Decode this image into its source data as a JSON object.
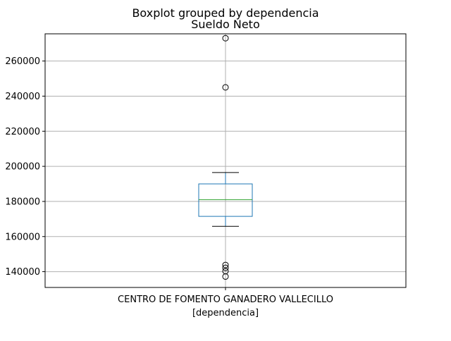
{
  "chart_data": {
    "type": "box",
    "suptitle": "Boxplot grouped by dependencia",
    "title": "Sueldo Neto",
    "xlabel": "[dependencia]",
    "ylabel": "",
    "categories": [
      "CENTRO DE FOMENTO GANADERO VALLECILLO"
    ],
    "ylim": [
      131000,
      275500
    ],
    "yticks": [
      140000,
      160000,
      180000,
      200000,
      220000,
      240000,
      260000
    ],
    "grid": true,
    "boxes": [
      {
        "category": "CENTRO DE FOMENTO GANADERO VALLECILLO",
        "whisker_low": 165800,
        "q1": 171500,
        "median": 181000,
        "q3": 190000,
        "whisker_high": 196500,
        "outliers": [
          273000,
          245000,
          143800,
          142200,
          140300,
          137200
        ]
      }
    ],
    "colors": {
      "box": "#1f77b4",
      "median": "#2ca02c",
      "whisker": "#000000",
      "outlier": "#000000",
      "grid": "#b0b0b0"
    }
  }
}
